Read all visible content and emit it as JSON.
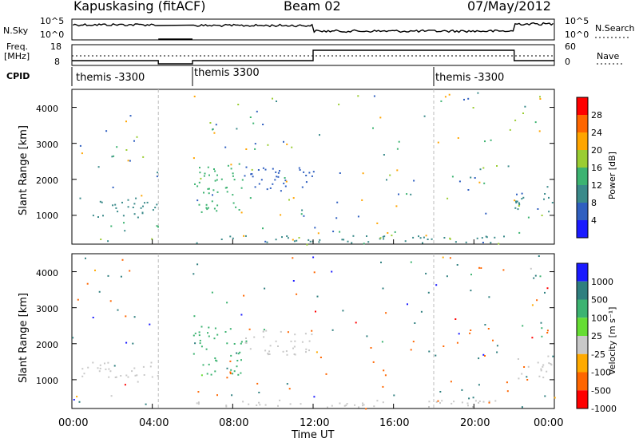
{
  "header": {
    "station": "Kapuskasing (fitACF)",
    "beam": "Beam 02",
    "date": "07/May/2012"
  },
  "strip1": {
    "left_label": "N.Sky",
    "left_ticks": [
      "10^5",
      "10^0"
    ],
    "right_ticks": [
      "10^5",
      "10^0"
    ],
    "right_label": "N.Search"
  },
  "strip2": {
    "left_label_1": "Freq.",
    "left_label_2": "[MHz]",
    "left_ticks": [
      "18",
      "8"
    ],
    "right_ticks": [
      "60",
      "0"
    ],
    "right_label": "Nave"
  },
  "cpid": {
    "label": "CPID",
    "segments": [
      {
        "start_h": 0.0,
        "end_h": 6.0,
        "text": "themis -3300"
      },
      {
        "start_h": 6.0,
        "end_h": 18.0,
        "text": "themis 3300"
      },
      {
        "start_h": 18.0,
        "end_h": 24.0,
        "text": "themis -3300"
      }
    ]
  },
  "time_axis": {
    "label": "Time UT",
    "ticks": [
      "00:00",
      "04:00",
      "08:00",
      "12:00",
      "16:00",
      "20:00",
      "00:00"
    ]
  },
  "power_panel": {
    "ylabel": "Slant Range [km]",
    "yticks": [
      "1000",
      "2000",
      "3000",
      "4000"
    ],
    "colorbar_label": "Power [dB]",
    "colorbar_ticks": [
      "4",
      "8",
      "12",
      "16",
      "20",
      "24",
      "28"
    ],
    "colors": [
      "#1a1aff",
      "#2f5fc0",
      "#3a8a8a",
      "#3cb371",
      "#9acd32",
      "#ffa500",
      "#ff6600",
      "#ff0000"
    ]
  },
  "velocity_panel": {
    "ylabel": "Slant Range [km]",
    "yticks": [
      "1000",
      "2000",
      "3000",
      "4000"
    ],
    "colorbar_label": "Velocity [m s⁻¹]",
    "colorbar_ticks": [
      "1000",
      "500",
      "100",
      "25",
      "-25",
      "-100",
      "-500",
      "-1000"
    ],
    "colors": [
      "#1a1aff",
      "#2f7f7f",
      "#3cb371",
      "#66dd33",
      "#c8c8c8",
      "#ffaa00",
      "#ff6600",
      "#ff0000"
    ]
  },
  "chart_data": {
    "type": "heatmap",
    "title": "Kapuskasing (fitACF) Beam 02 07/May/2012",
    "xlabel": "Time UT",
    "ylabel": "Slant Range [km]",
    "xlim_hours": [
      0,
      24
    ],
    "ylim_km": [
      200,
      4500
    ],
    "data_gaps_hours": [
      [
        4.3,
        6.0
      ]
    ],
    "scatter_regions": [
      {
        "t_start": 0.2,
        "t_end": 4.3,
        "r_start": 950,
        "r_end": 1500,
        "power_db": 10,
        "velocity": 0
      },
      {
        "t_start": 6.0,
        "t_end": 8.5,
        "r_start": 1100,
        "r_end": 2500,
        "power_db": 14,
        "velocity": 100
      },
      {
        "t_start": 8.5,
        "t_end": 12.0,
        "r_start": 1700,
        "r_end": 2400,
        "power_db": 6,
        "velocity": 0
      },
      {
        "t_start": 6.0,
        "t_end": 22.0,
        "r_start": 250,
        "r_end": 450,
        "power_db": 8,
        "velocity": 0
      },
      {
        "t_start": 22.0,
        "t_end": 24.0,
        "r_start": 1000,
        "r_end": 1700,
        "power_db": 8,
        "velocity": 0
      }
    ]
  }
}
